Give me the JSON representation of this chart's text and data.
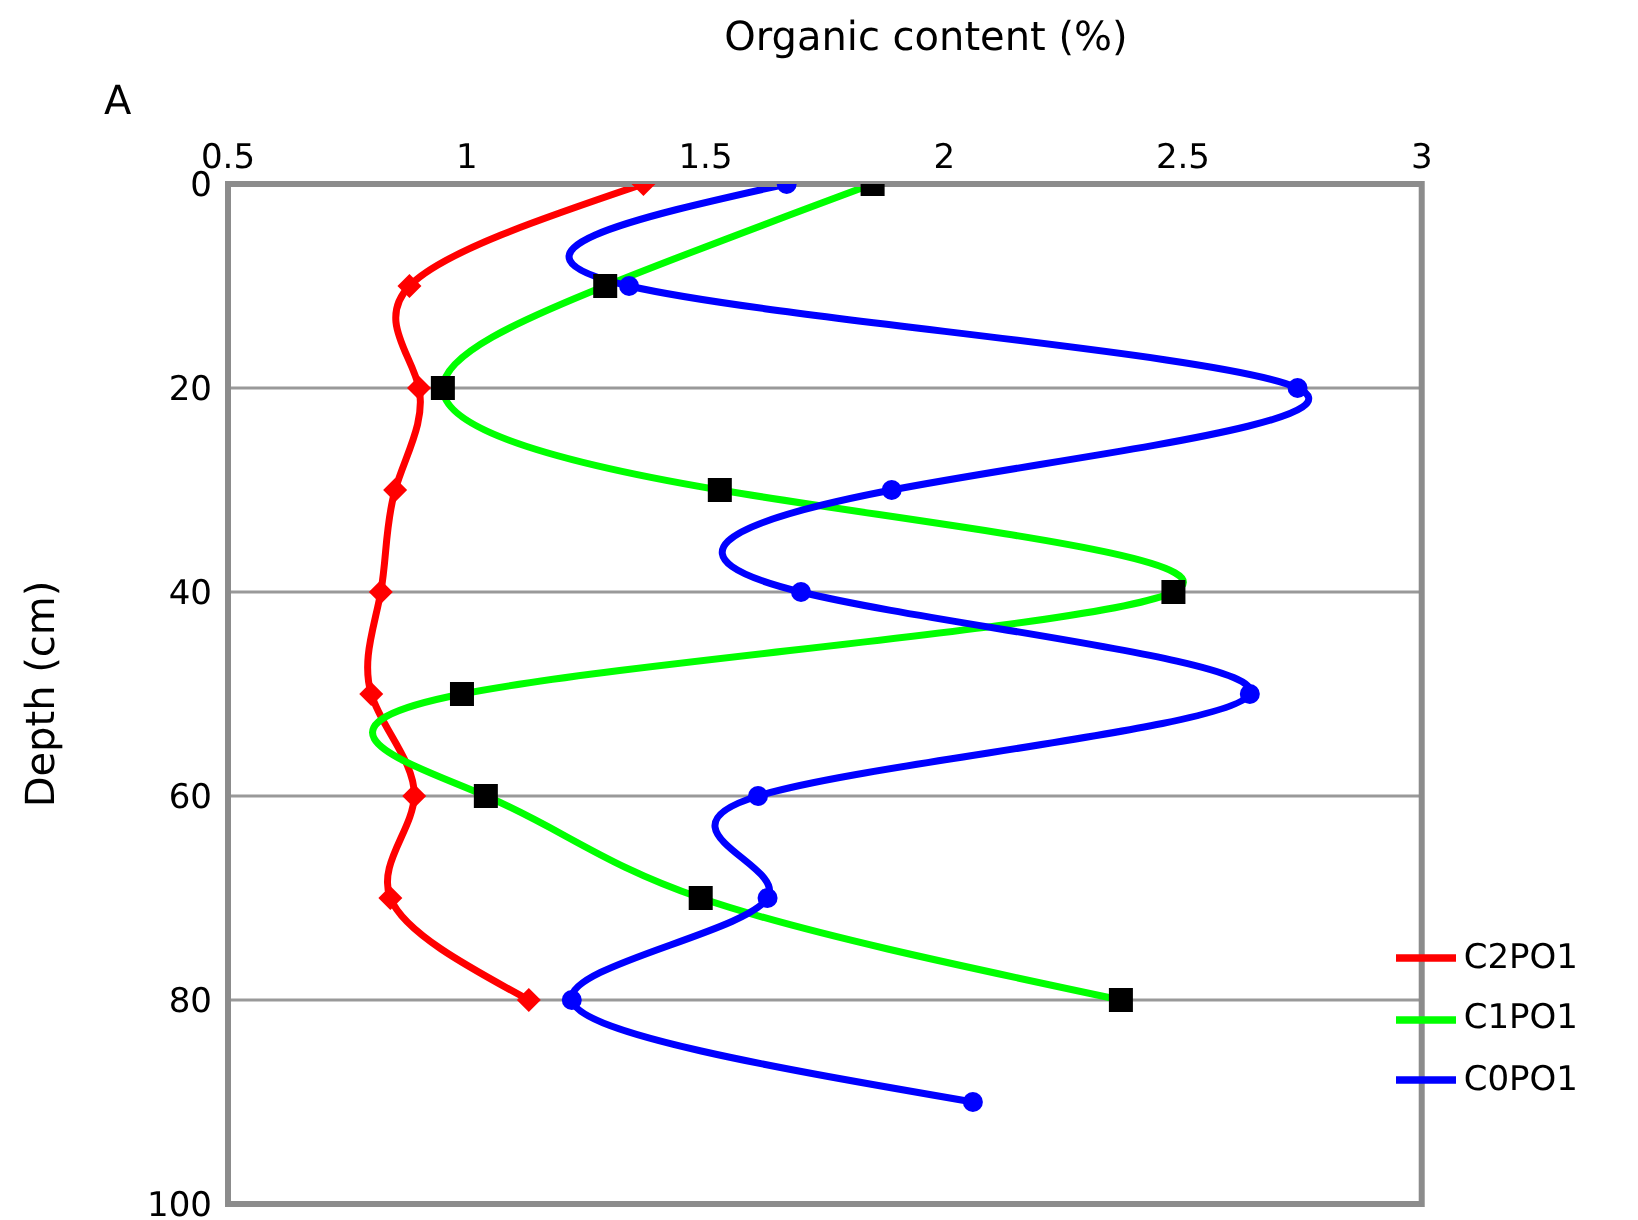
{
  "chart_data": {
    "type": "line",
    "orientation": "horizontal",
    "xlabel": "Organic content (%)",
    "ylabel": "Depth (cm)",
    "annotations": [
      "A"
    ],
    "xlim": [
      0.5,
      3
    ],
    "xticks": [
      0.5,
      1,
      1.5,
      2,
      2.5,
      3
    ],
    "ylim": [
      100,
      0
    ],
    "yticks": [
      0,
      20,
      40,
      60,
      80,
      100
    ],
    "grid": "y",
    "legend": "bottom right",
    "series": [
      {
        "name": "C2PO1",
        "color": "#ff0000",
        "marker": "diamond",
        "x": [
          0,
          10,
          20,
          30,
          40,
          50,
          60,
          70,
          80
        ],
        "values": [
          1.37,
          0.88,
          0.9,
          0.85,
          0.82,
          0.8,
          0.89,
          0.84,
          1.13
        ]
      },
      {
        "name": "C1PO1",
        "color": "#00ff00",
        "marker": "square",
        "x": [
          0,
          10,
          20,
          30,
          40,
          50,
          60,
          70,
          80
        ],
        "values": [
          1.85,
          1.29,
          0.95,
          1.53,
          2.48,
          0.99,
          1.04,
          1.49,
          2.37
        ]
      },
      {
        "name": "C0PO1",
        "color": "#0000ff",
        "marker": "circle",
        "x": [
          0,
          10,
          20,
          30,
          40,
          50,
          60,
          70,
          80,
          90
        ],
        "values": [
          1.67,
          1.34,
          2.74,
          1.89,
          1.7,
          2.64,
          1.61,
          1.63,
          1.22,
          2.06
        ]
      }
    ]
  }
}
